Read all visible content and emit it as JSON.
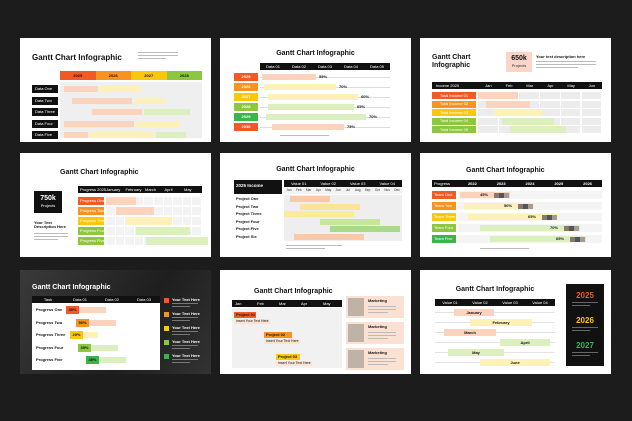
{
  "slides": [
    {
      "title": "Gantt Chart Infographic",
      "years": [
        "2025",
        "2026",
        "2027",
        "2028"
      ],
      "rows": [
        "Data One",
        "Data Two",
        "Data Three",
        "Data Four",
        "Data Five"
      ]
    },
    {
      "title": "Gantt Chart Infographic",
      "columns": [
        "Data 01",
        "Data 02",
        "Data 03",
        "Data 04",
        "Data 05"
      ],
      "rows": [
        "2025",
        "2026",
        "2027",
        "2028",
        "2029",
        "2030"
      ],
      "percents": [
        "55%",
        "70%",
        "60%",
        "65%",
        "70%",
        "75%"
      ]
    },
    {
      "title": "Gantt Chart Infographic",
      "stat": "650k",
      "stat_label": "Projects",
      "description": "Your text description here",
      "header": [
        "Income 2025",
        "Jan",
        "Feb",
        "Mar",
        "Apr",
        "May",
        "Jun"
      ],
      "rows": [
        "Total Income 01",
        "Total Income 02",
        "Total Income 03",
        "Total Income 04",
        "Total Income 05"
      ]
    },
    {
      "title": "Gantt Chart Infographic",
      "stat": "750k",
      "stat_label": "Projects",
      "description": "Your Text Description Here",
      "header": [
        "Progress 2025",
        "January",
        "February",
        "March",
        "April",
        "May"
      ],
      "rows": [
        "Progress One",
        "Progress Two",
        "Progress Three",
        "Progress Four",
        "Progress Five"
      ]
    },
    {
      "title": "Gantt Chart Infographic",
      "header": [
        "2025 Income",
        "Value 01",
        "Value 02",
        "Value 03",
        "Value 04"
      ],
      "months": [
        "Jan",
        "Feb",
        "Mar",
        "Apr",
        "May",
        "Jun",
        "Jul",
        "Aug",
        "Sep",
        "Oct",
        "Nov",
        "Dec"
      ],
      "rows": [
        "Project One",
        "Project Two",
        "Project Three",
        "Project Four",
        "Project Five",
        "Project Six"
      ]
    },
    {
      "title": "Gantt Chart Infographic",
      "header": [
        "Progress",
        "2022",
        "2023",
        "2024",
        "2025",
        "2026"
      ],
      "rows": [
        "Team One",
        "Team Two",
        "Team Three",
        "Team Four",
        "Team Five"
      ],
      "percents": [
        "45%",
        "50%",
        "65%",
        "70%",
        "65%"
      ]
    },
    {
      "title": "Gantt Chart Infographic",
      "header": [
        "Task",
        "Data 01",
        "Data 02",
        "Data 03"
      ],
      "rows": [
        "Progress One",
        "Progress Two",
        "Progress Three",
        "Progress Four",
        "Progress Five"
      ],
      "percents": [
        "30%",
        "50%",
        "20%",
        "35%",
        "45%"
      ],
      "legend": [
        "Your Text Here",
        "Your Text Here",
        "Your Text Here",
        "Your Text Here",
        "Your Text Here"
      ]
    },
    {
      "title": "Gantt Chart Infographic",
      "months": [
        "Jan",
        "Feb",
        "Mar",
        "Apr",
        "May"
      ],
      "tasks": [
        "Project 01",
        "Project 02",
        "Project 03"
      ],
      "task_note": "Insert Your Text Here",
      "cards": [
        "Marketing",
        "Marketing",
        "Marketing"
      ]
    },
    {
      "title": "Gantt Chart Infographic",
      "header": [
        "Value 01",
        "Value 02",
        "Value 03",
        "Value 04"
      ],
      "rows": [
        "January",
        "February",
        "March",
        "April",
        "May",
        "June"
      ],
      "years": [
        "2025",
        "2026",
        "2027"
      ]
    }
  ]
}
